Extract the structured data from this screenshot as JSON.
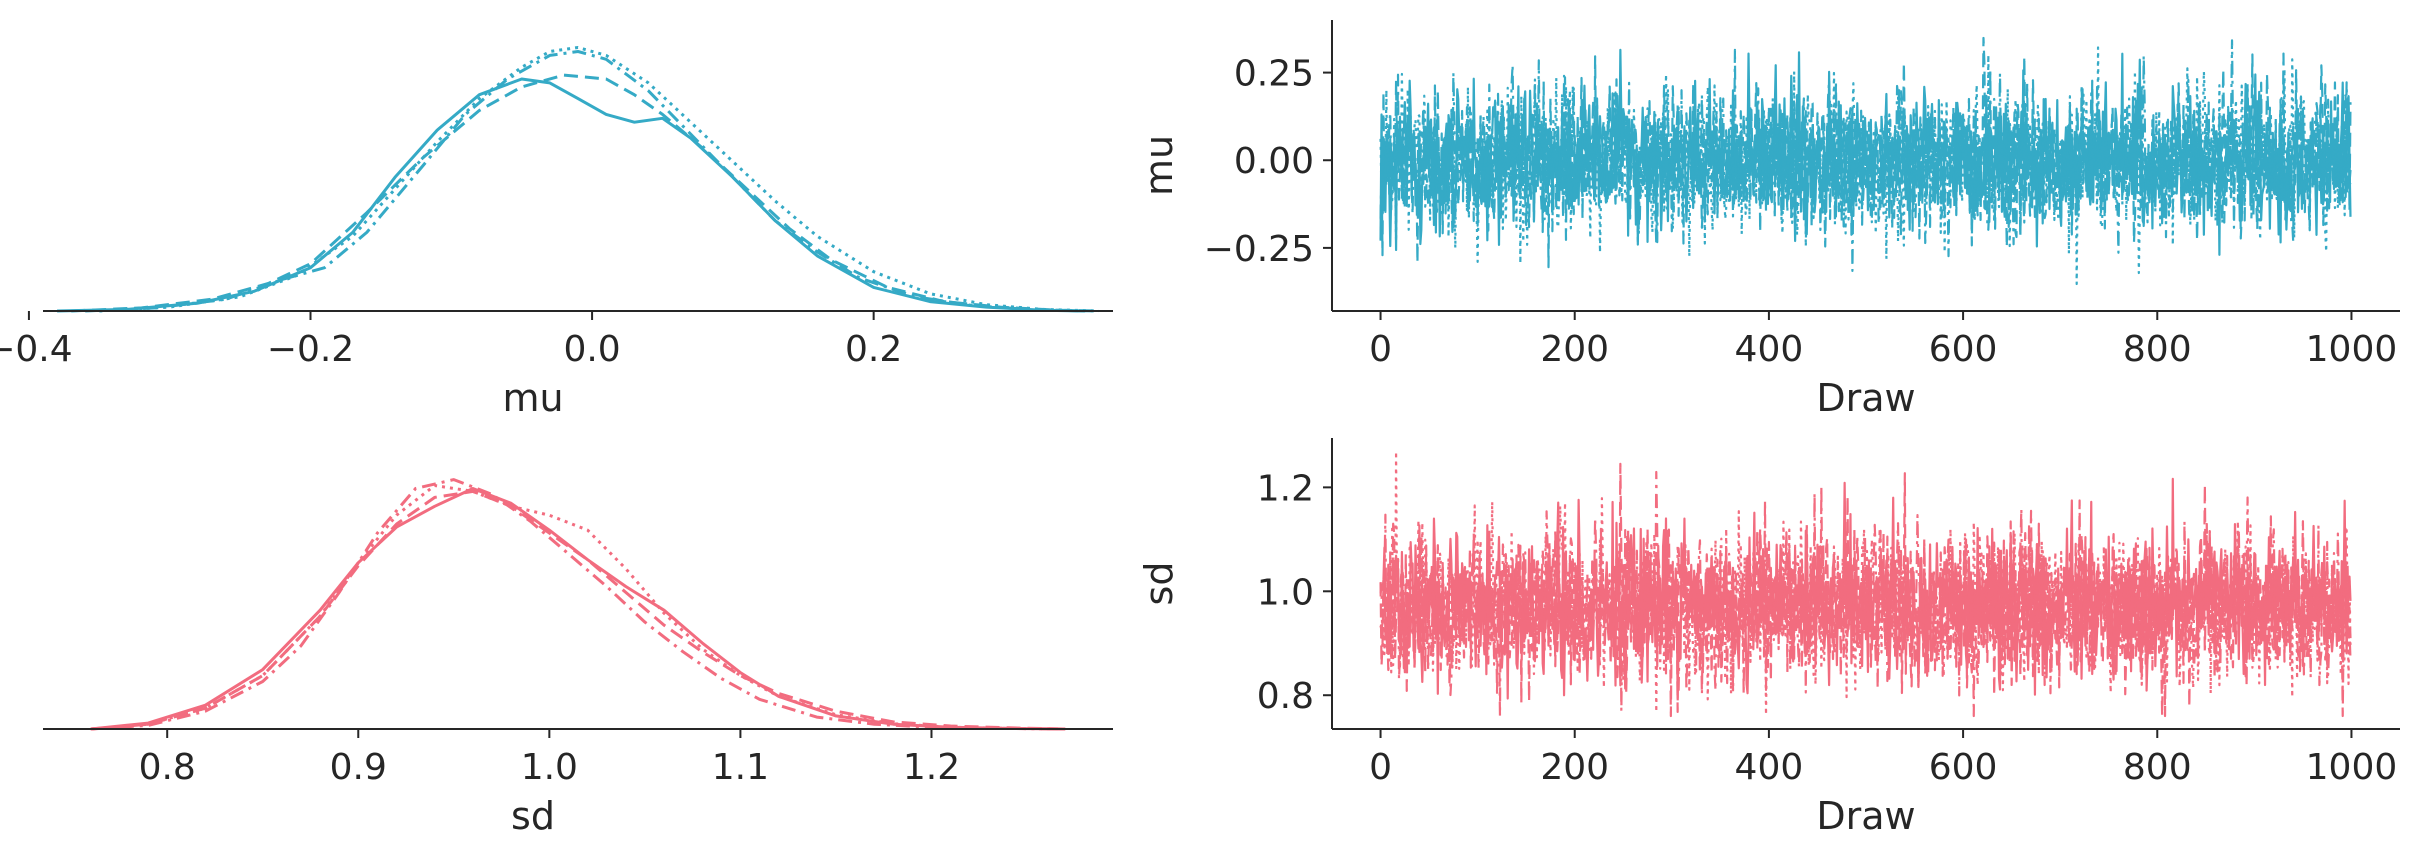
{
  "chart_data": [
    {
      "type": "line",
      "panel": "density-mu",
      "xlabel": "mu",
      "ylabel": "",
      "xlim": [
        -0.39,
        0.37
      ],
      "ylim": [
        0,
        3.7
      ],
      "xticks": [
        -0.4,
        -0.2,
        0.0,
        0.2
      ],
      "xtick_labels": [
        "−0.4",
        "−0.2",
        "0.0",
        "0.2"
      ],
      "yticks": [],
      "color": "#35aac6",
      "series": [
        {
          "style": "solid",
          "x": [
            -0.38,
            -0.33,
            -0.28,
            -0.24,
            -0.2,
            -0.17,
            -0.14,
            -0.11,
            -0.08,
            -0.05,
            -0.03,
            -0.01,
            0.01,
            0.03,
            0.05,
            0.07,
            0.1,
            0.13,
            0.16,
            0.2,
            0.24,
            0.28,
            0.32,
            0.35
          ],
          "y": [
            0,
            0.02,
            0.1,
            0.25,
            0.55,
            1.0,
            1.7,
            2.3,
            2.75,
            2.95,
            2.9,
            2.7,
            2.5,
            2.4,
            2.45,
            2.2,
            1.7,
            1.15,
            0.7,
            0.3,
            0.12,
            0.05,
            0.01,
            0
          ]
        },
        {
          "style": "dashed",
          "x": [
            -0.37,
            -0.32,
            -0.27,
            -0.23,
            -0.2,
            -0.16,
            -0.12,
            -0.08,
            -0.05,
            -0.02,
            0.01,
            0.03,
            0.05,
            0.08,
            0.11,
            0.14,
            0.17,
            0.21,
            0.25,
            0.29,
            0.33,
            0.36
          ],
          "y": [
            0,
            0.04,
            0.15,
            0.35,
            0.6,
            1.25,
            1.95,
            2.55,
            2.85,
            3.0,
            2.95,
            2.75,
            2.5,
            2.05,
            1.55,
            1.05,
            0.65,
            0.3,
            0.12,
            0.05,
            0.01,
            0
          ]
        },
        {
          "style": "dashdot",
          "x": [
            -0.36,
            -0.31,
            -0.26,
            -0.22,
            -0.19,
            -0.16,
            -0.12,
            -0.09,
            -0.06,
            -0.03,
            -0.01,
            0.01,
            0.04,
            0.07,
            0.1,
            0.13,
            0.16,
            0.19,
            0.23,
            0.27,
            0.31,
            0.35
          ],
          "y": [
            0,
            0.04,
            0.15,
            0.4,
            0.55,
            1.0,
            1.85,
            2.5,
            2.95,
            3.25,
            3.3,
            3.2,
            2.8,
            2.25,
            1.7,
            1.15,
            0.75,
            0.42,
            0.18,
            0.07,
            0.02,
            0
          ]
        },
        {
          "style": "dotted",
          "x": [
            -0.35,
            -0.3,
            -0.25,
            -0.21,
            -0.17,
            -0.14,
            -0.11,
            -0.08,
            -0.05,
            -0.03,
            -0.01,
            0.01,
            0.04,
            0.07,
            0.1,
            0.13,
            0.16,
            0.2,
            0.24,
            0.28,
            0.32,
            0.36
          ],
          "y": [
            0,
            0.05,
            0.18,
            0.45,
            0.95,
            1.55,
            2.15,
            2.7,
            3.1,
            3.3,
            3.35,
            3.25,
            2.9,
            2.4,
            1.9,
            1.4,
            0.95,
            0.5,
            0.22,
            0.08,
            0.02,
            0
          ]
        }
      ]
    },
    {
      "type": "line",
      "panel": "trace-mu",
      "xlabel": "Draw",
      "ylabel": "mu",
      "xlim": [
        -50,
        1050
      ],
      "ylim": [
        -0.43,
        0.4
      ],
      "xticks": [
        0,
        200,
        400,
        600,
        800,
        1000
      ],
      "xtick_labels": [
        "0",
        "200",
        "400",
        "600",
        "800",
        "1000"
      ],
      "yticks": [
        0.25,
        0.0,
        -0.25
      ],
      "ytick_labels": [
        "0.25",
        "0.00",
        "−0.25"
      ],
      "color": "#35aac6",
      "trace": {
        "draws": 1000,
        "chains": 4,
        "styles": [
          "solid",
          "dashed",
          "dashdot",
          "dotted"
        ],
        "mean": 0.0,
        "sd": 0.1,
        "min": -0.39,
        "max": 0.36
      }
    },
    {
      "type": "line",
      "panel": "density-sd",
      "xlabel": "sd",
      "ylabel": "",
      "xlim": [
        0.735,
        1.295
      ],
      "ylim": [
        0,
        4.9
      ],
      "xticks": [
        0.8,
        0.9,
        1.0,
        1.1,
        1.2
      ],
      "xtick_labels": [
        "0.8",
        "0.9",
        "1.0",
        "1.1",
        "1.2"
      ],
      "yticks": [],
      "color": "#f26c7f",
      "series": [
        {
          "style": "solid",
          "x": [
            0.76,
            0.79,
            0.82,
            0.85,
            0.88,
            0.9,
            0.92,
            0.94,
            0.96,
            0.98,
            1.0,
            1.02,
            1.04,
            1.06,
            1.08,
            1.1,
            1.12,
            1.15,
            1.18,
            1.21,
            1.24,
            1.27
          ],
          "y": [
            0,
            0.1,
            0.4,
            1.0,
            2.0,
            2.8,
            3.4,
            3.75,
            4.05,
            3.8,
            3.35,
            2.85,
            2.4,
            2.0,
            1.45,
            0.95,
            0.55,
            0.22,
            0.08,
            0.03,
            0.01,
            0
          ]
        },
        {
          "style": "dashed",
          "x": [
            0.76,
            0.79,
            0.82,
            0.85,
            0.88,
            0.9,
            0.92,
            0.94,
            0.96,
            0.98,
            1.0,
            1.02,
            1.04,
            1.06,
            1.08,
            1.1,
            1.12,
            1.15,
            1.18,
            1.21,
            1.24,
            1.27
          ],
          "y": [
            0,
            0.08,
            0.35,
            0.9,
            1.9,
            2.75,
            3.45,
            3.9,
            4.0,
            3.75,
            3.3,
            2.85,
            2.3,
            1.75,
            1.3,
            0.9,
            0.6,
            0.3,
            0.12,
            0.05,
            0.02,
            0
          ]
        },
        {
          "style": "dashdot",
          "x": [
            0.76,
            0.79,
            0.82,
            0.85,
            0.87,
            0.89,
            0.91,
            0.93,
            0.95,
            0.97,
            0.99,
            1.01,
            1.03,
            1.05,
            1.07,
            1.09,
            1.11,
            1.14,
            1.17,
            1.2,
            1.24,
            1.27
          ],
          "y": [
            0,
            0.06,
            0.3,
            0.8,
            1.4,
            2.3,
            3.3,
            4.05,
            4.2,
            3.95,
            3.5,
            2.95,
            2.4,
            1.8,
            1.3,
            0.85,
            0.5,
            0.2,
            0.08,
            0.03,
            0.01,
            0
          ]
        },
        {
          "style": "dotted",
          "x": [
            0.76,
            0.79,
            0.82,
            0.85,
            0.88,
            0.9,
            0.92,
            0.94,
            0.96,
            0.98,
            1.0,
            1.02,
            1.04,
            1.06,
            1.08,
            1.1,
            1.12,
            1.15,
            1.18,
            1.21,
            1.24,
            1.27
          ],
          "y": [
            0,
            0.08,
            0.35,
            0.9,
            1.9,
            2.8,
            3.6,
            4.1,
            4.0,
            3.75,
            3.6,
            3.35,
            2.7,
            1.95,
            1.35,
            0.9,
            0.55,
            0.24,
            0.09,
            0.03,
            0.01,
            0
          ]
        }
      ]
    },
    {
      "type": "line",
      "panel": "trace-sd",
      "xlabel": "Draw",
      "ylabel": "sd",
      "xlim": [
        -50,
        1050
      ],
      "ylim": [
        0.735,
        1.295
      ],
      "xticks": [
        0,
        200,
        400,
        600,
        800,
        1000
      ],
      "xtick_labels": [
        "0",
        "200",
        "400",
        "600",
        "800",
        "1000"
      ],
      "yticks": [
        1.2,
        1.0,
        0.8
      ],
      "ytick_labels": [
        "1.2",
        "1.0",
        "0.8"
      ],
      "color": "#f26c7f",
      "trace": {
        "draws": 1000,
        "chains": 4,
        "styles": [
          "solid",
          "dashed",
          "dashdot",
          "dotted"
        ],
        "mean": 0.97,
        "sd": 0.07,
        "min": 0.76,
        "max": 1.27
      }
    }
  ]
}
